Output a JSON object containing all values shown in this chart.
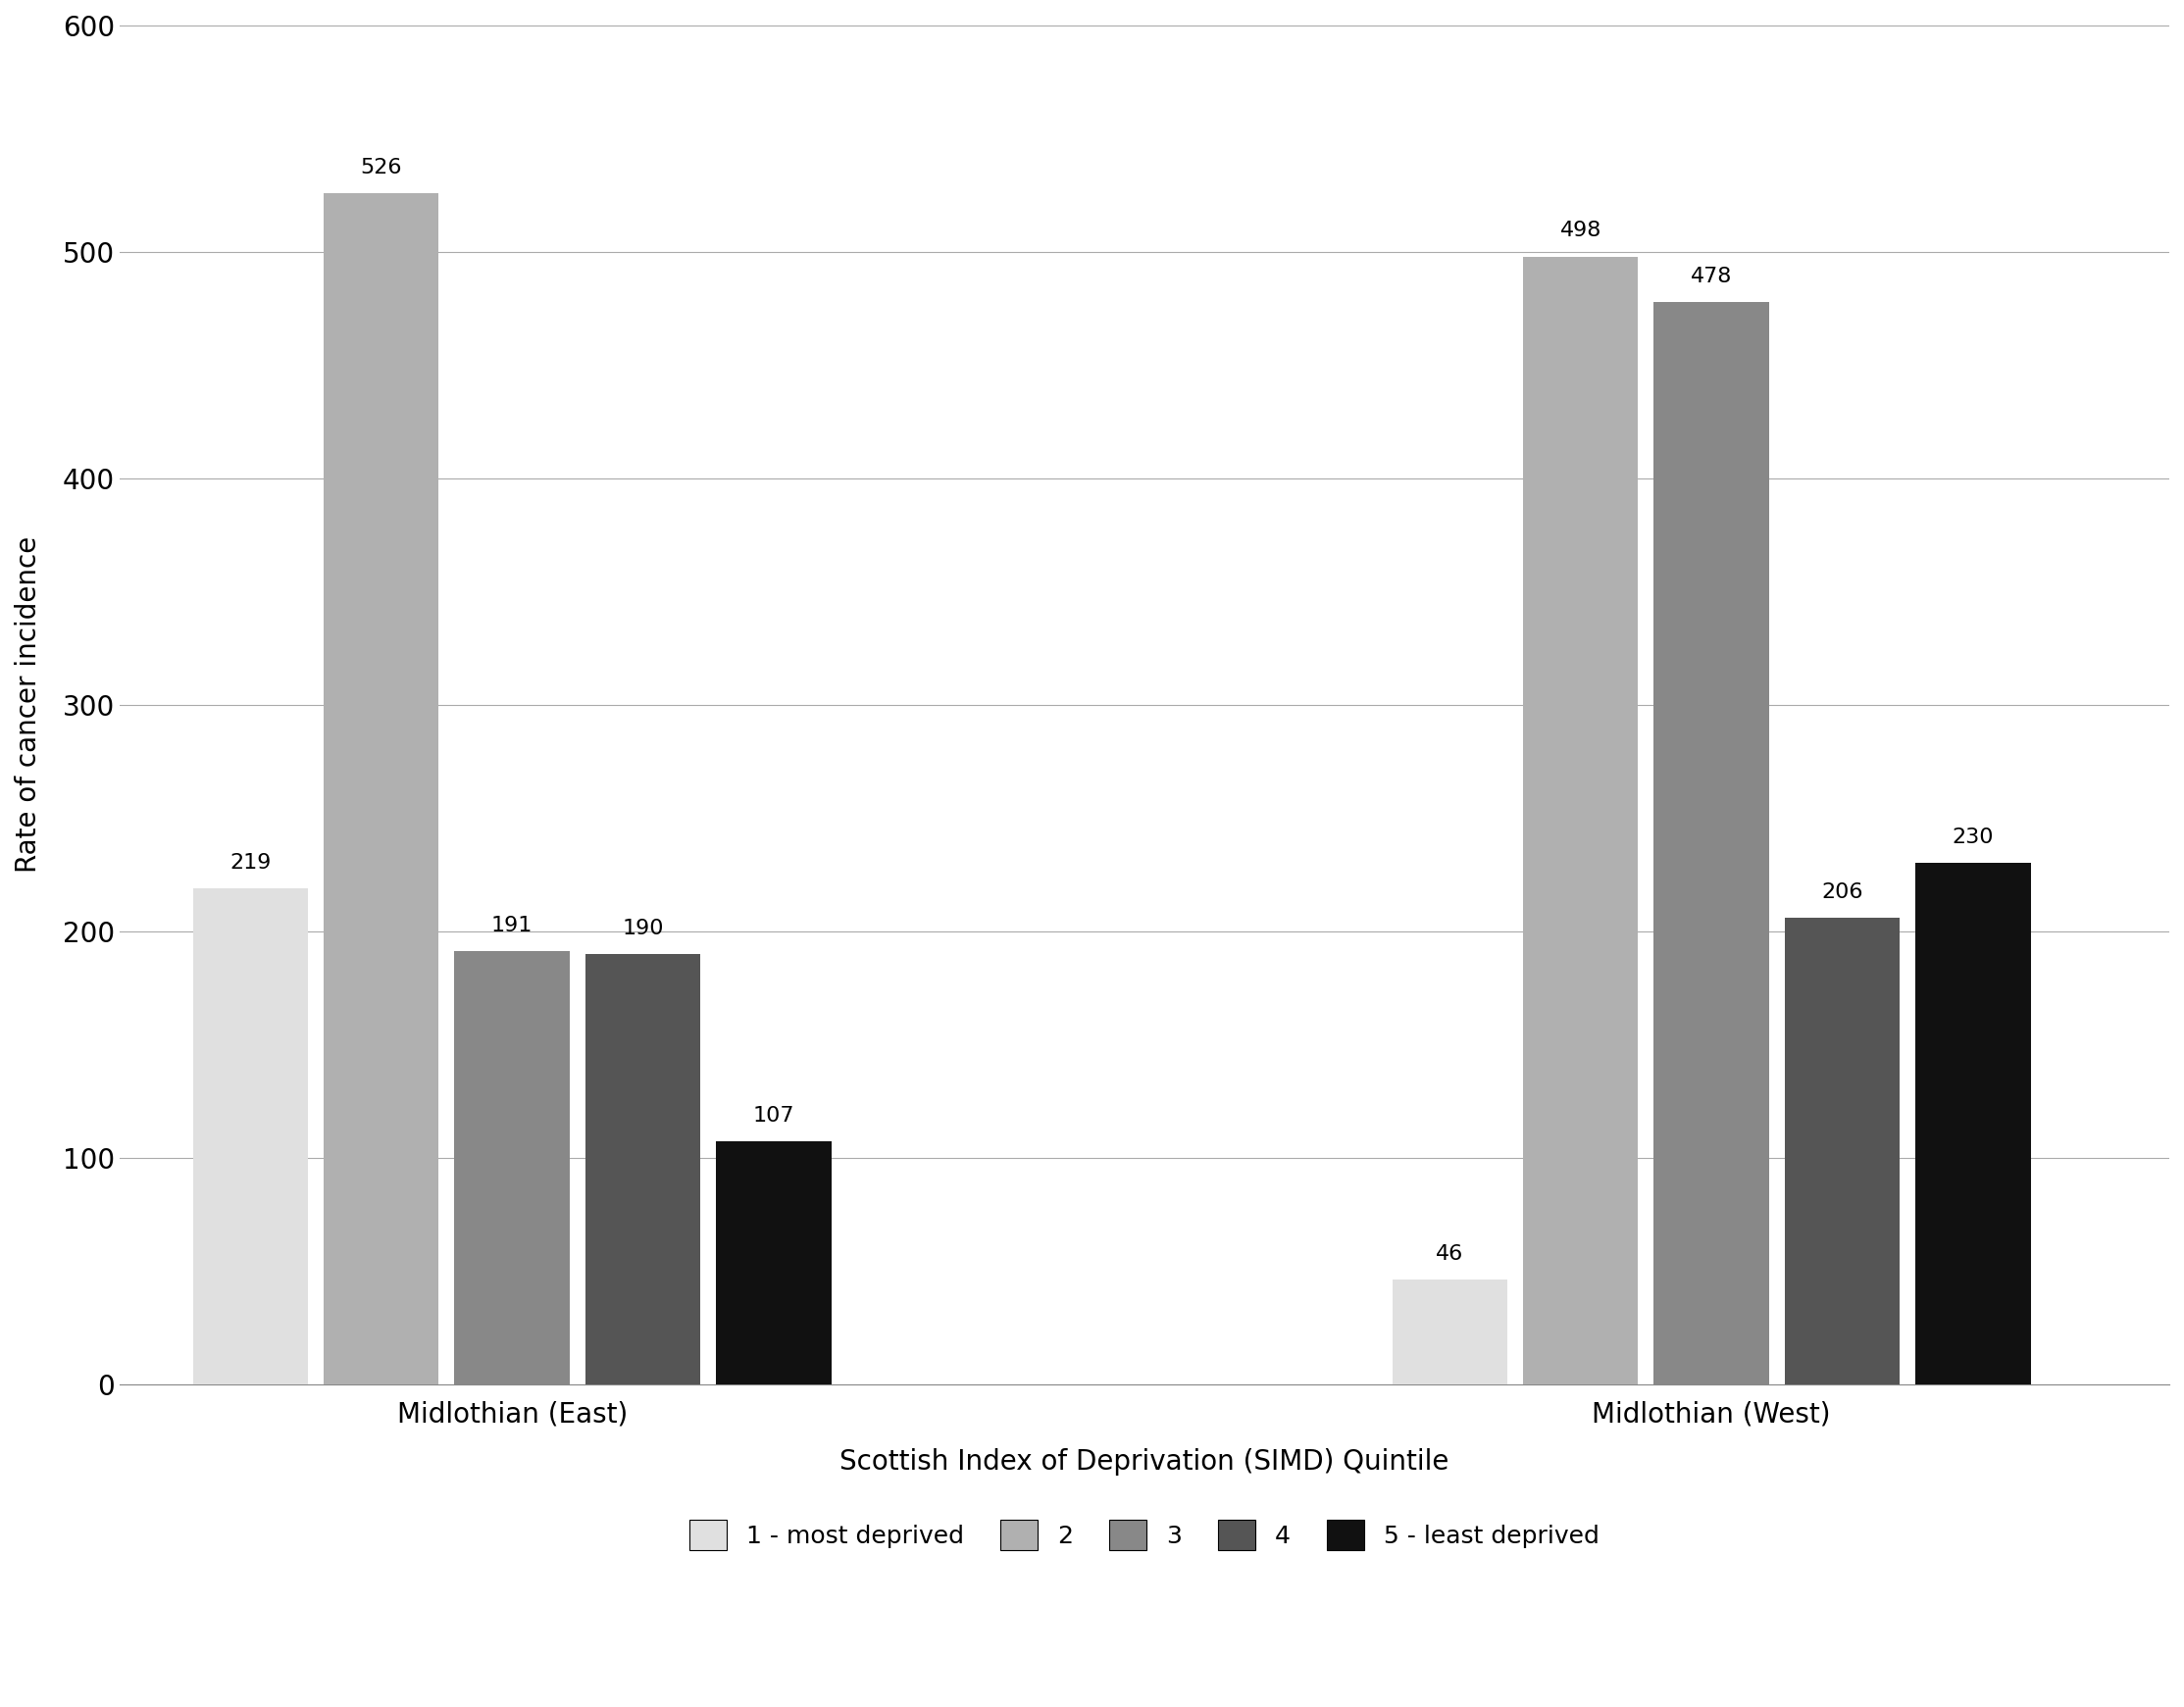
{
  "groups": [
    "Midlothian (East)",
    "Midlothian (West)"
  ],
  "quintile_labels": [
    "1 - most deprived",
    "2",
    "3",
    "4",
    "5 - least deprived"
  ],
  "east_values": [
    219,
    526,
    191,
    190,
    107
  ],
  "west_values": [
    46,
    498,
    478,
    206,
    230
  ],
  "colors": [
    "#e0e0e0",
    "#b0b0b0",
    "#888888",
    "#555555",
    "#111111"
  ],
  "ylabel": "Rate of cancer incidence",
  "xlabel": "Scottish Index of Deprivation (SIMD) Quintile",
  "ylim": [
    0,
    600
  ],
  "yticks": [
    0,
    100,
    200,
    300,
    400,
    500,
    600
  ],
  "background_color": "#ffffff",
  "grid_color": "#aaaaaa",
  "label_fontsize": 20,
  "tick_fontsize": 20,
  "legend_fontsize": 18,
  "value_label_fontsize": 16
}
